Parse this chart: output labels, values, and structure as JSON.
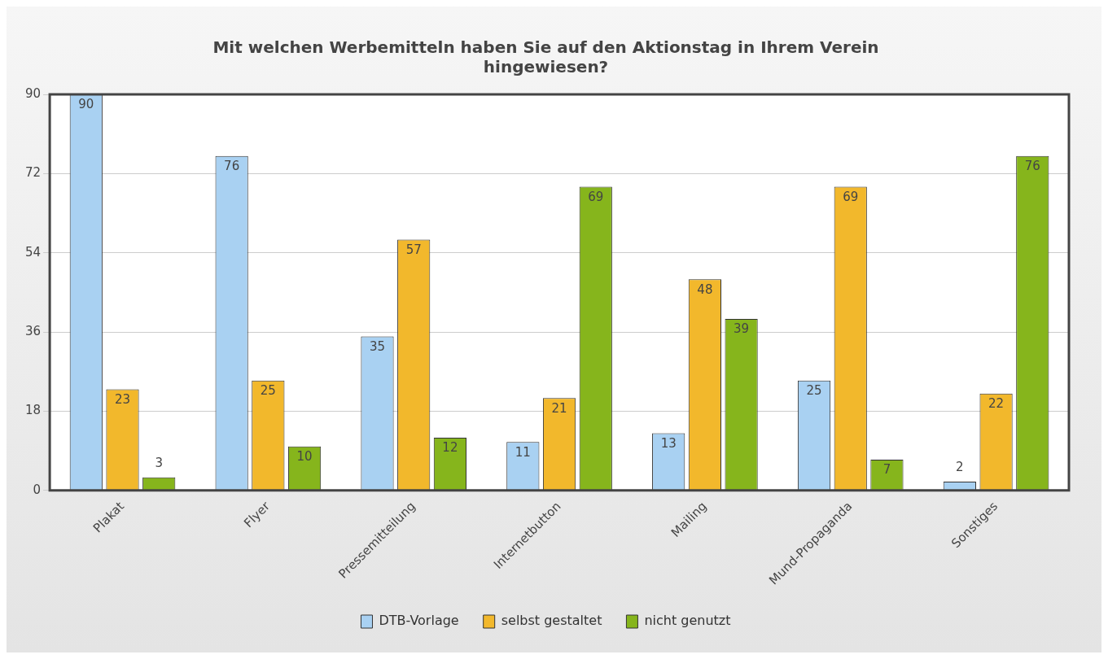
{
  "chart_data": {
    "type": "bar",
    "title": "Mit welchen Werbemitteln haben Sie auf den Aktionstag in Ihrem Verein hingewiesen?",
    "categories": [
      "Plakat",
      "Flyer",
      "Pressemitteilung",
      "Internetbutton",
      "Mailing",
      "Mund-Propaganda",
      "Sonstiges"
    ],
    "series": [
      {
        "name": "DTB-Vorlage",
        "color": "#a9d1f2",
        "values": [
          90,
          76,
          35,
          11,
          13,
          25,
          2
        ]
      },
      {
        "name": "selbst gestaltet",
        "color": "#f2b82c",
        "values": [
          23,
          25,
          57,
          21,
          48,
          69,
          22
        ]
      },
      {
        "name": "nicht genutzt",
        "color": "#86b51c",
        "values": [
          3,
          10,
          12,
          69,
          39,
          7,
          76
        ]
      }
    ],
    "ylim": [
      0,
      90
    ],
    "yticks": [
      0,
      18,
      36,
      54,
      72,
      90
    ],
    "grid": "y",
    "legend": "bottom",
    "data_labels": true
  }
}
